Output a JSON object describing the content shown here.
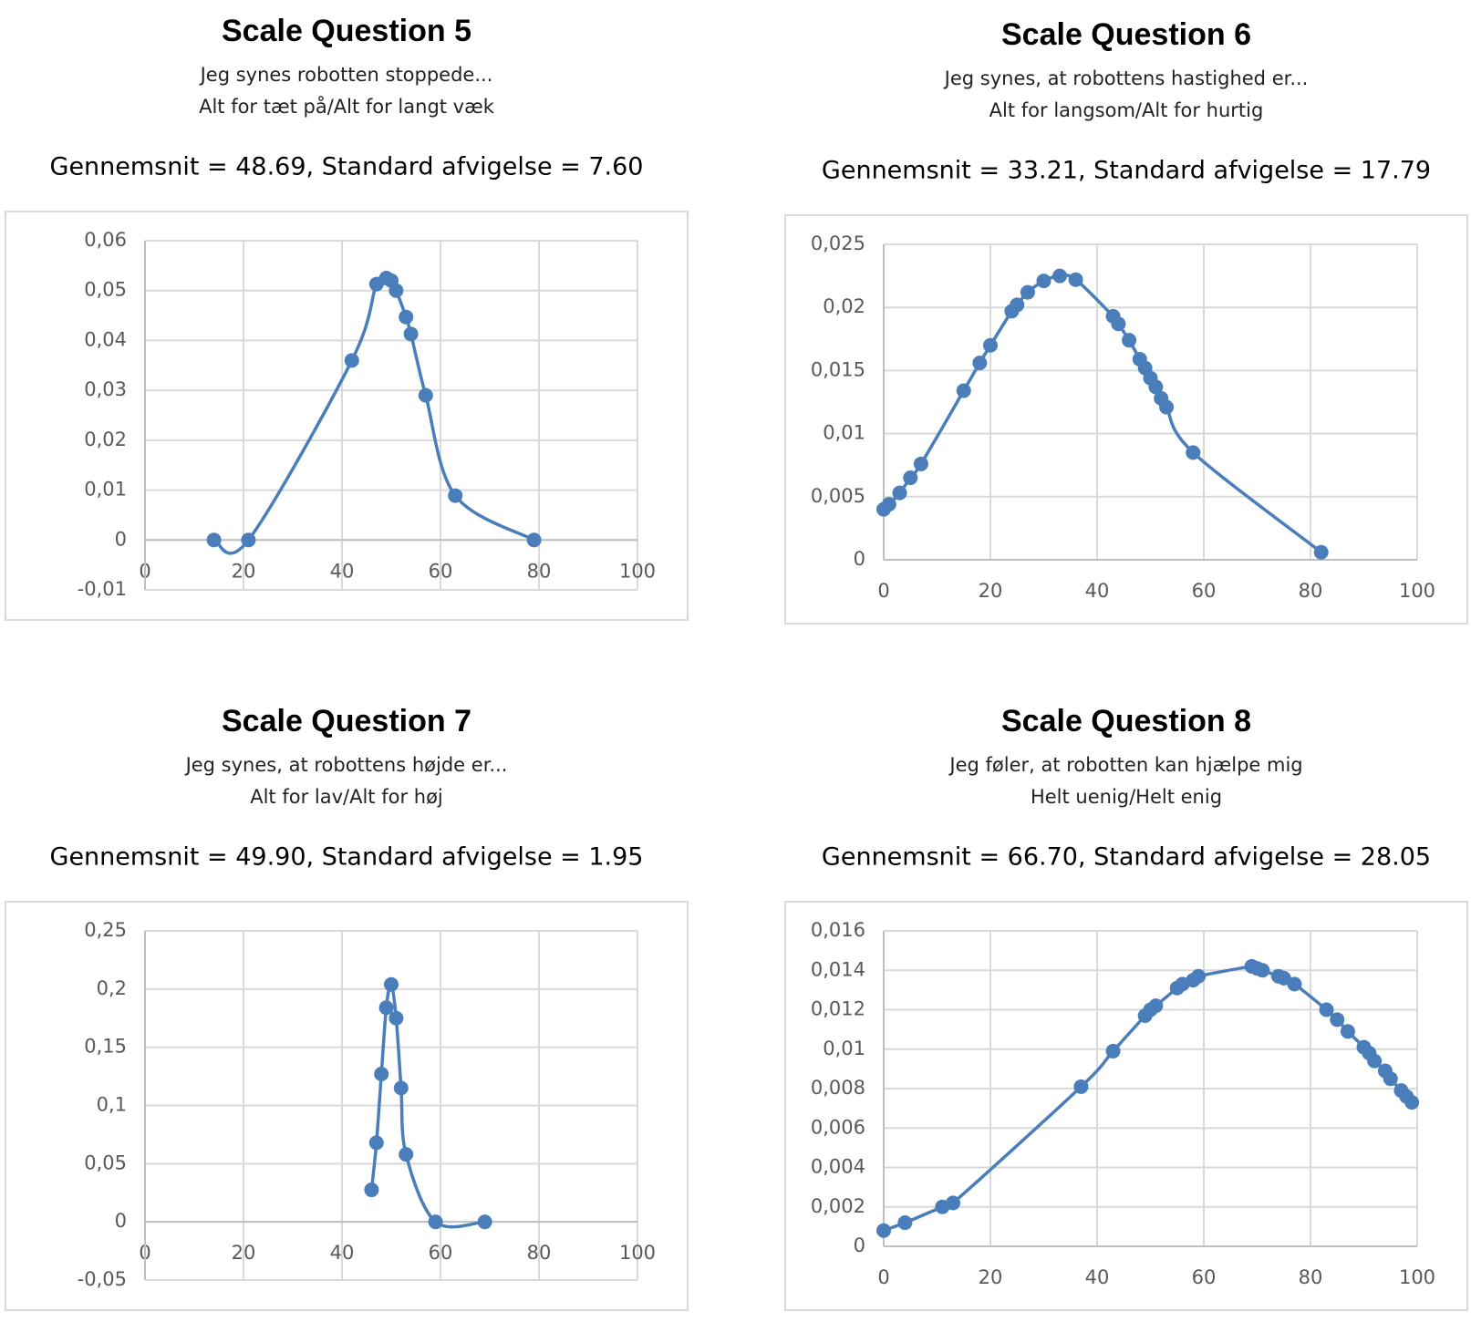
{
  "chart_data": [
    {
      "type": "scatter",
      "line": "smooth",
      "markers": true,
      "grid": true,
      "color": "#4a7ebb",
      "title": "Scale Question 5",
      "subtitle": [
        "Jeg synes robotten stoppede...",
        "Alt for tæt på/Alt for langt væk"
      ],
      "stats": "Gennemsnit =  48.69, Standard afvigelse = 7.60",
      "x": [
        14,
        21,
        42,
        47,
        49,
        50,
        51,
        53,
        54,
        57,
        63,
        79
      ],
      "values": [
        0,
        0,
        0.036,
        0.0513,
        0.0525,
        0.052,
        0.05,
        0.0447,
        0.0413,
        0.029,
        0.0089,
        0
      ],
      "xlim": [
        0,
        100
      ],
      "xticks": [
        0,
        20,
        40,
        60,
        80,
        100
      ],
      "ylim": [
        -0.01,
        0.06
      ],
      "yticks": [
        {
          "value": -0.01,
          "label": "-0,01"
        },
        0,
        {
          "value": 0.01,
          "label": "0,01"
        },
        {
          "value": 0.02,
          "label": "0,02"
        },
        {
          "value": 0.03,
          "label": "0,03"
        },
        {
          "value": 0.04,
          "label": "0,04"
        },
        {
          "value": 0.05,
          "label": "0,05"
        },
        {
          "value": 0.06,
          "label": "0,06"
        }
      ]
    },
    {
      "type": "scatter",
      "line": "smooth",
      "markers": true,
      "grid": true,
      "color": "#4a7ebb",
      "title": "Scale Question 6",
      "subtitle": [
        "Jeg synes, at robottens hastighed er...",
        "Alt for langsom/Alt for hurtig"
      ],
      "stats": "Gennemsnit =  33.21, Standard afvigelse = 17.79",
      "x": [
        0,
        1,
        3,
        5,
        7,
        15,
        18,
        20,
        24,
        25,
        27,
        30,
        33,
        36,
        43,
        44,
        46,
        48,
        49,
        50,
        51,
        52,
        53,
        58,
        82
      ],
      "values": [
        0.004,
        0.0044,
        0.0053,
        0.0065,
        0.0076,
        0.0134,
        0.0156,
        0.017,
        0.0197,
        0.0202,
        0.0212,
        0.0221,
        0.0225,
        0.0222,
        0.0193,
        0.0187,
        0.0174,
        0.0159,
        0.0152,
        0.0144,
        0.0137,
        0.0128,
        0.0121,
        0.0085,
        0.0006
      ],
      "xlim": [
        0,
        100
      ],
      "xticks": [
        0,
        20,
        40,
        60,
        80,
        100
      ],
      "ylim": [
        0,
        0.025
      ],
      "yticks": [
        0,
        {
          "value": 0.005,
          "label": "0,005"
        },
        {
          "value": 0.01,
          "label": "0,01"
        },
        {
          "value": 0.015,
          "label": "0,015"
        },
        {
          "value": 0.02,
          "label": "0,02"
        },
        {
          "value": 0.025,
          "label": "0,025"
        }
      ]
    },
    {
      "type": "scatter",
      "line": "smooth",
      "markers": true,
      "grid": true,
      "color": "#4a7ebb",
      "title": "Scale Question 7",
      "subtitle": [
        "Jeg synes, at robottens højde er...",
        "Alt for lav/Alt for høj"
      ],
      "stats": "Gennemsnit =  49.90, Standard afvigelse = 1.95",
      "x": [
        46,
        47,
        48,
        49,
        50,
        51,
        52,
        53,
        59,
        69
      ],
      "values": [
        0.0275,
        0.068,
        0.127,
        0.184,
        0.204,
        0.175,
        0.115,
        0.058,
        0,
        0
      ],
      "xlim": [
        0,
        100
      ],
      "xticks": [
        0,
        20,
        40,
        60,
        80,
        100
      ],
      "ylim": [
        -0.05,
        0.25
      ],
      "yticks": [
        {
          "value": -0.05,
          "label": "-0,05"
        },
        0,
        {
          "value": 0.05,
          "label": "0,05"
        },
        {
          "value": 0.1,
          "label": "0,1"
        },
        {
          "value": 0.15,
          "label": "0,15"
        },
        {
          "value": 0.2,
          "label": "0,2"
        },
        {
          "value": 0.25,
          "label": "0,25"
        }
      ]
    },
    {
      "type": "scatter",
      "line": "smooth",
      "markers": true,
      "grid": true,
      "color": "#4a7ebb",
      "title": "Scale Question 8",
      "subtitle": [
        "Jeg føler, at robotten kan hjælpe mig",
        "Helt uenig/Helt enig"
      ],
      "stats": "Gennemsnit =  66.70, Standard afvigelse = 28.05",
      "x": [
        0,
        4,
        11,
        13,
        37,
        43,
        49,
        50,
        51,
        55,
        56,
        58,
        59,
        69,
        70,
        71,
        74,
        75,
        77,
        83,
        85,
        87,
        90,
        91,
        92,
        94,
        95,
        97,
        98,
        99
      ],
      "values": [
        0.0008,
        0.0012,
        0.002,
        0.0022,
        0.0081,
        0.0099,
        0.0117,
        0.012,
        0.0122,
        0.0131,
        0.0133,
        0.0135,
        0.0137,
        0.0142,
        0.0141,
        0.014,
        0.0137,
        0.0136,
        0.0133,
        0.012,
        0.0115,
        0.0109,
        0.0101,
        0.0098,
        0.0094,
        0.0089,
        0.0085,
        0.0079,
        0.0076,
        0.0073
      ],
      "xlim": [
        0,
        100
      ],
      "xticks": [
        0,
        20,
        40,
        60,
        80,
        100
      ],
      "ylim": [
        0,
        0.016
      ],
      "yticks": [
        0,
        {
          "value": 0.002,
          "label": "0,002"
        },
        {
          "value": 0.004,
          "label": "0,004"
        },
        {
          "value": 0.006,
          "label": "0,006"
        },
        {
          "value": 0.008,
          "label": "0,008"
        },
        {
          "value": 0.01,
          "label": "0,01"
        },
        {
          "value": 0.012,
          "label": "0,012"
        },
        {
          "value": 0.014,
          "label": "0,014"
        },
        {
          "value": 0.016,
          "label": "0,016"
        }
      ]
    }
  ]
}
